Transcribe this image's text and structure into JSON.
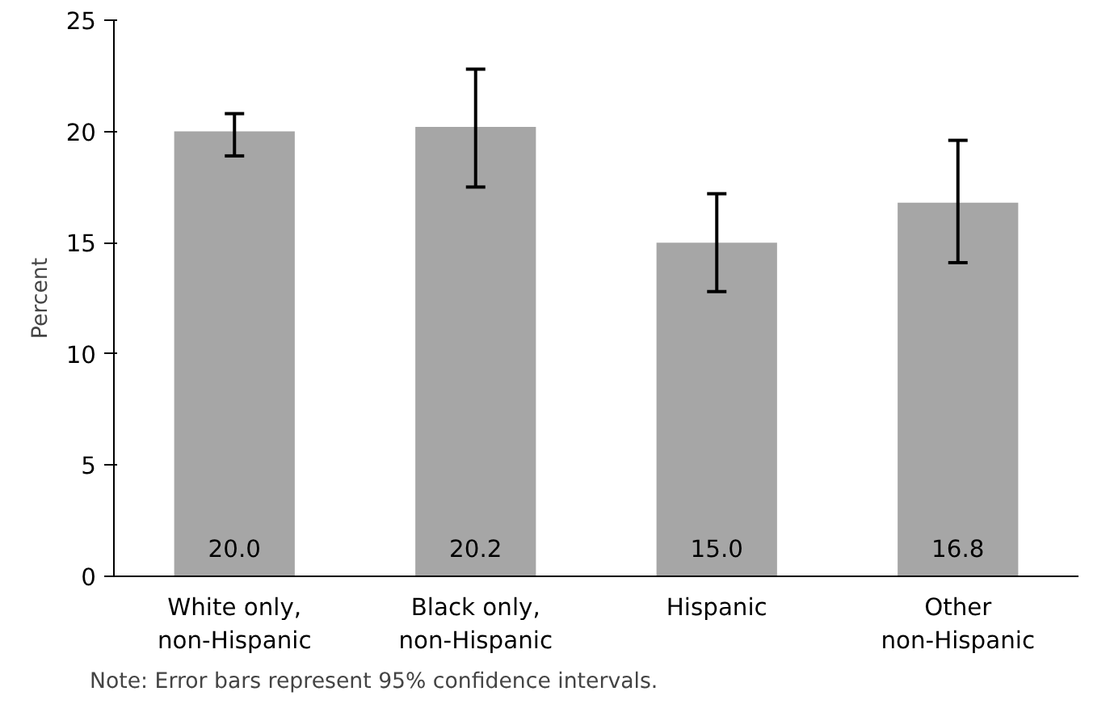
{
  "chart_data": {
    "type": "bar",
    "ylabel": "Percent",
    "categories": [
      "White only,\nnon-Hispanic",
      "Black only,\nnon-Hispanic",
      "Hispanic",
      "Other\nnon-Hispanic"
    ],
    "values": [
      20.0,
      20.2,
      15.0,
      16.8
    ],
    "errors": [
      [
        18.9,
        20.8
      ],
      [
        17.5,
        22.8
      ],
      [
        12.8,
        17.2
      ],
      [
        14.1,
        19.6
      ]
    ],
    "color": "#a6a6a6",
    "value_labels": [
      "20.0",
      "20.2",
      "15.0",
      "16.8"
    ],
    "grid": false,
    "ylim": [
      0,
      25
    ],
    "yticks": [
      0,
      5,
      10,
      15,
      20,
      25
    ],
    "annotations": [
      "Note:  Error bars represent 95% confidence intervals."
    ]
  }
}
